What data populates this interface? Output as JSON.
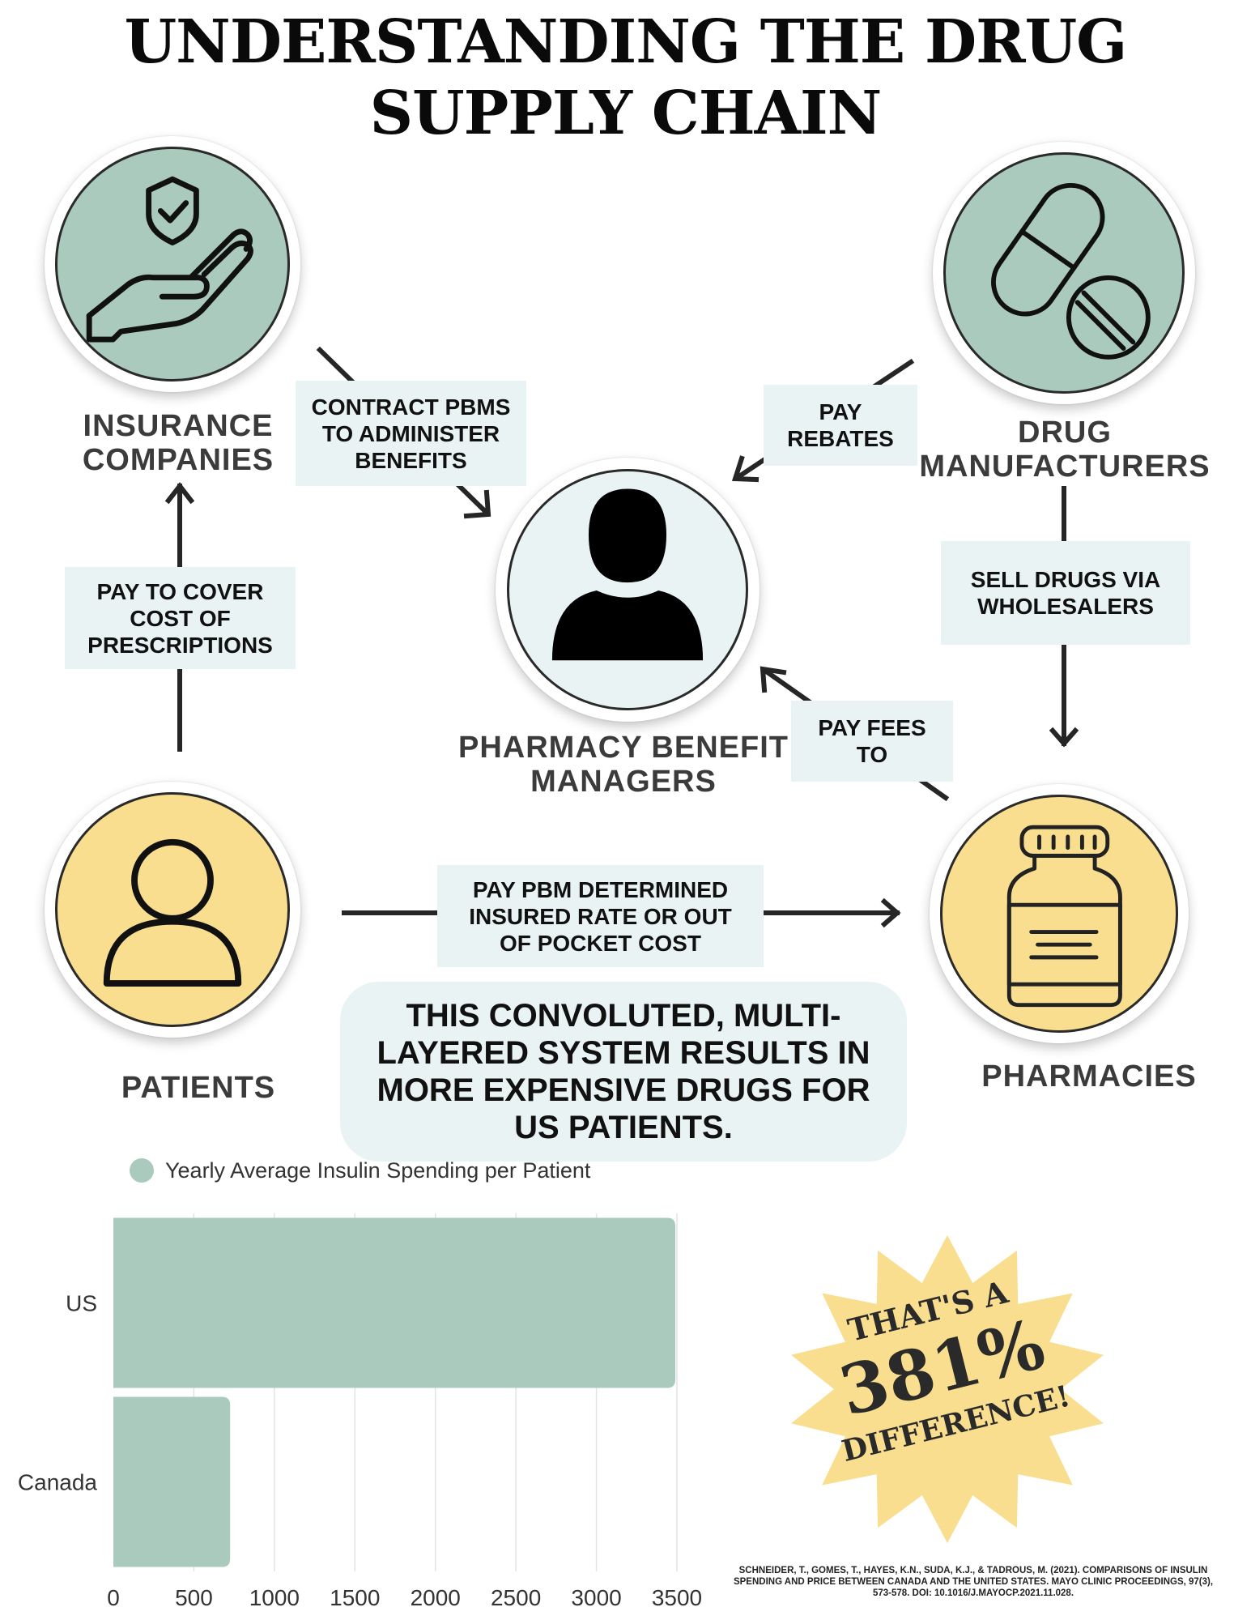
{
  "title": {
    "line1": "UNDERSTANDING THE DRUG",
    "line2": "SUPPLY CHAIN"
  },
  "nodes": {
    "insurance": {
      "line1": "INSURANCE",
      "line2": "COMPANIES",
      "icon": "hand-shield-icon",
      "color": "#a9cabc"
    },
    "manufacturers": {
      "line1": "DRUG",
      "line2": "MANUFACTURERS",
      "icon": "pills-icon",
      "color": "#a9cabc"
    },
    "pbm": {
      "line1": "PHARMACY BENEFIT",
      "line2": "MANAGERS",
      "icon": "person-silhouette-icon",
      "color": "#eaf3f4"
    },
    "patients": {
      "line1": "PATIENTS",
      "icon": "person-outline-icon",
      "color": "#f8de8e"
    },
    "pharmacies": {
      "line1": "PHARMACIES",
      "icon": "medicine-bottle-icon",
      "color": "#f8de8e"
    }
  },
  "edges": {
    "contract": {
      "line1": "CONTRACT PBMS",
      "line2": "TO ADMINISTER",
      "line3": "BENEFITS"
    },
    "rebates": {
      "line1": "PAY",
      "line2": "REBATES"
    },
    "sell": {
      "line1": "SELL DRUGS VIA",
      "line2": "WHOLESALERS"
    },
    "fees": {
      "line1": "PAY FEES",
      "line2": "TO"
    },
    "cover": {
      "line1": "PAY TO COVER",
      "line2": "COST OF",
      "line3": "PRESCRIPTIONS"
    },
    "pay_pbm": {
      "line1": "PAY PBM DETERMINED",
      "line2": "INSURED RATE OR OUT",
      "line3": "OF POCKET COST"
    }
  },
  "callout": {
    "line1": "THIS CONVOLUTED, MULTI-",
    "line2": "LAYERED SYSTEM RESULTS IN",
    "line3": "MORE EXPENSIVE DRUGS FOR",
    "line4": "US PATIENTS."
  },
  "chart_data": {
    "type": "bar",
    "orientation": "horizontal",
    "categories": [
      "US",
      "Canada"
    ],
    "series": [
      {
        "name": "Yearly Average Insulin Spending per Patient",
        "values": [
          3490,
          725
        ],
        "color": "#a9cabc"
      }
    ],
    "xlim": [
      0,
      3500
    ],
    "xticks": [
      0,
      500,
      1000,
      1500,
      2000,
      2500,
      3000,
      3500
    ],
    "grid": true,
    "legend_position": "top-left"
  },
  "burst": {
    "line1": "THAT'S A",
    "line2": "381%",
    "line3": "DIFFERENCE!",
    "color": "#f8de8e"
  },
  "citation": {
    "line1": "SCHNEIDER, T., GOMES, T., HAYES, K.N., SUDA, K.J., & TADROUS, M. (2021). COMPARISONS OF  INSULIN",
    "line2": "SPENDING AND PRICE BETWEEN CANADA AND THE UNITED STATES. MAYO CLINIC PROCEEDINGS, 97(3),",
    "line3": "573-578. DOI: 10.1016/J.MAYOCP.2021.11.028."
  }
}
